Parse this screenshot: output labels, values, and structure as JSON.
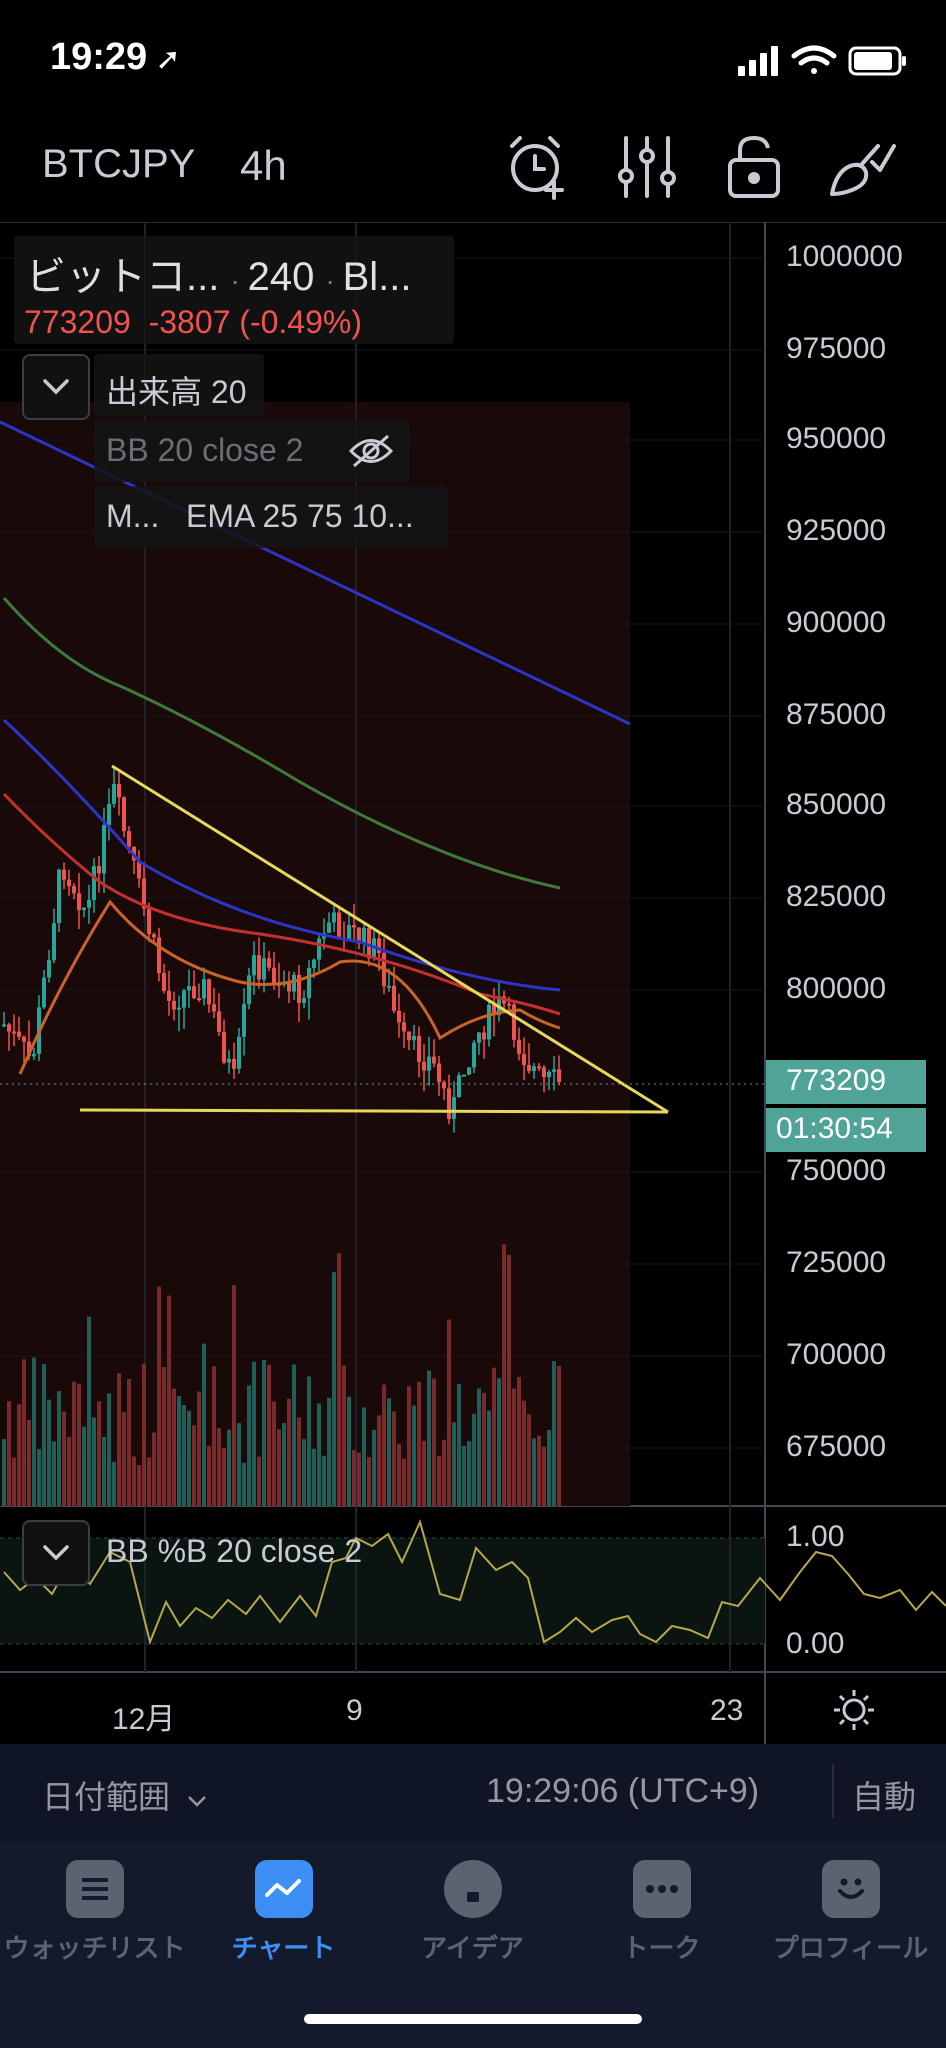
{
  "status_bar": {
    "time": "19:29"
  },
  "header": {
    "symbol": "BTCJPY",
    "timeframe": "4h",
    "icons": [
      "alarm-add-icon",
      "indicators-icon",
      "lock-icon",
      "drawing-tools-icon"
    ]
  },
  "legend": {
    "name": "ビットコ...",
    "interval": "240",
    "exchange": "Bl...",
    "price": "773209",
    "change": "-3807",
    "change_pct": "(-0.49%)",
    "volume": "出来高 20",
    "bb": "BB 20 close 2",
    "ema_prefix": "M...",
    "ema": "EMA 25 75 10..."
  },
  "price_axis": [
    "1000000",
    "975000",
    "950000",
    "925000",
    "900000",
    "875000",
    "850000",
    "825000",
    "800000",
    "773209",
    "01:30:54",
    "750000",
    "725000",
    "700000",
    "675000"
  ],
  "pb_axis": [
    "1.00",
    "0.00"
  ],
  "pb_label": "BB %B 20 close 2",
  "time_axis": [
    "12月",
    "9",
    "23"
  ],
  "colors": {
    "up": "#26a69a",
    "down": "#ef5350",
    "last_price_bg": "#4fa397",
    "trend": "#e5d85c",
    "accent": "#3d8ff5"
  },
  "toolbar": {
    "range": "日付範囲",
    "clock": "19:29:06 (UTC+9)",
    "auto": "自動"
  },
  "tabs": [
    {
      "label": "ウォッチリスト",
      "icon": "watchlist-icon",
      "active": false
    },
    {
      "label": "チャート",
      "icon": "chart-icon",
      "active": true
    },
    {
      "label": "アイデア",
      "icon": "ideas-icon",
      "active": false
    },
    {
      "label": "トーク",
      "icon": "chat-icon",
      "active": false
    },
    {
      "label": "プロフィール",
      "icon": "profile-icon",
      "active": false
    }
  ]
}
